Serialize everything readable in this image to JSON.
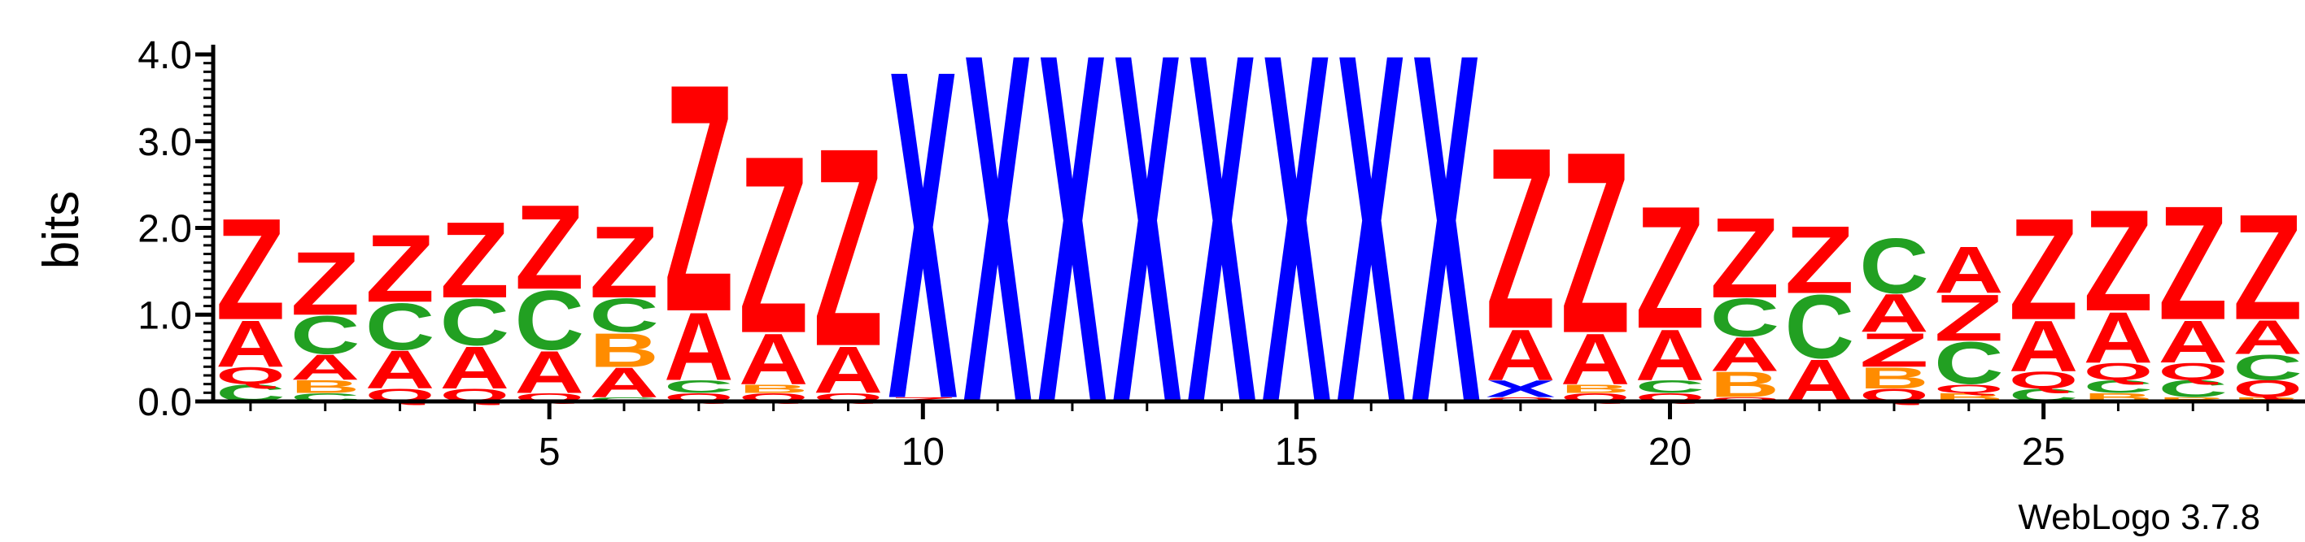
{
  "colors": {
    "red": "#ff0000",
    "green": "#22a022",
    "orange": "#ff8c00",
    "blue": "#0000ff",
    "axis": "#000000"
  },
  "letter_colors": {
    "Z": "#ff0000",
    "A": "#ff0000",
    "Q": "#ff0000",
    "C": "#22a022",
    "B": "#ff8c00",
    "X": "#0000ff"
  },
  "chart_data": {
    "type": "sequence-logo",
    "ylabel": "bits",
    "ylim": [
      0,
      4.0
    ],
    "xlim": [
      0.5,
      28.5
    ],
    "yticks": [
      "0.0",
      "1.0",
      "2.0",
      "3.0",
      "4.0"
    ],
    "ytick_values": [
      0,
      1,
      2,
      3,
      4
    ],
    "xticks": [
      "5",
      "10",
      "15",
      "20",
      "25"
    ],
    "xtick_values": [
      5,
      10,
      15,
      20,
      25
    ],
    "credit": "WebLogo 3.7.8",
    "positions": [
      {
        "pos": 1,
        "stack": [
          [
            "C",
            0.2
          ],
          [
            "Q",
            0.2
          ],
          [
            "A",
            0.55
          ],
          [
            "Z",
            1.2
          ]
        ]
      },
      {
        "pos": 2,
        "stack": [
          [
            "C",
            0.1
          ],
          [
            "B",
            0.15
          ],
          [
            "A",
            0.3
          ],
          [
            "C",
            0.45
          ],
          [
            "Z",
            0.75
          ]
        ]
      },
      {
        "pos": 3,
        "stack": [
          [
            "Q",
            0.15
          ],
          [
            "A",
            0.45
          ],
          [
            "C",
            0.55
          ],
          [
            "Z",
            0.8
          ]
        ]
      },
      {
        "pos": 4,
        "stack": [
          [
            "Q",
            0.15
          ],
          [
            "A",
            0.5
          ],
          [
            "C",
            0.55
          ],
          [
            "Z",
            0.9
          ]
        ]
      },
      {
        "pos": 5,
        "stack": [
          [
            "Q",
            0.1
          ],
          [
            "A",
            0.5
          ],
          [
            "C",
            0.7
          ],
          [
            "Z",
            1.0
          ]
        ]
      },
      {
        "pos": 6,
        "stack": [
          [
            "C",
            0.05
          ],
          [
            "A",
            0.35
          ],
          [
            "B",
            0.4
          ],
          [
            "C",
            0.4
          ],
          [
            "Z",
            0.85
          ]
        ]
      },
      {
        "pos": 7,
        "stack": [
          [
            "Q",
            0.1
          ],
          [
            "C",
            0.15
          ],
          [
            "A",
            0.8
          ],
          [
            "Z",
            2.7
          ]
        ]
      },
      {
        "pos": 8,
        "stack": [
          [
            "Q",
            0.1
          ],
          [
            "B",
            0.1
          ],
          [
            "A",
            0.6
          ],
          [
            "Z",
            2.1
          ]
        ]
      },
      {
        "pos": 9,
        "stack": [
          [
            "Q",
            0.1
          ],
          [
            "A",
            0.55
          ],
          [
            "Z",
            2.35
          ]
        ]
      },
      {
        "pos": 10,
        "stack": [
          [
            "Z",
            0.05
          ],
          [
            "X",
            3.9
          ]
        ]
      },
      {
        "pos": 11,
        "stack": [
          [
            "X",
            4.15
          ]
        ]
      },
      {
        "pos": 12,
        "stack": [
          [
            "X",
            4.15
          ]
        ]
      },
      {
        "pos": 13,
        "stack": [
          [
            "X",
            4.15
          ]
        ]
      },
      {
        "pos": 14,
        "stack": [
          [
            "X",
            4.15
          ]
        ]
      },
      {
        "pos": 15,
        "stack": [
          [
            "X",
            4.15
          ]
        ]
      },
      {
        "pos": 16,
        "stack": [
          [
            "X",
            4.15
          ]
        ]
      },
      {
        "pos": 17,
        "stack": [
          [
            "X",
            4.15
          ]
        ]
      },
      {
        "pos": 18,
        "stack": [
          [
            "Q",
            0.05
          ],
          [
            "X",
            0.2
          ],
          [
            "A",
            0.6
          ],
          [
            "Z",
            2.15
          ]
        ]
      },
      {
        "pos": 19,
        "stack": [
          [
            "Q",
            0.1
          ],
          [
            "B",
            0.1
          ],
          [
            "A",
            0.6
          ],
          [
            "Z",
            2.15
          ]
        ]
      },
      {
        "pos": 20,
        "stack": [
          [
            "Q",
            0.1
          ],
          [
            "C",
            0.15
          ],
          [
            "A",
            0.6
          ],
          [
            "Z",
            1.45
          ]
        ]
      },
      {
        "pos": 21,
        "stack": [
          [
            "Q",
            0.05
          ],
          [
            "B",
            0.3
          ],
          [
            "A",
            0.4
          ],
          [
            "C",
            0.45
          ],
          [
            "Z",
            0.95
          ]
        ]
      },
      {
        "pos": 22,
        "stack": [
          [
            "A",
            0.5
          ],
          [
            "C",
            0.75
          ],
          [
            "Z",
            0.8
          ]
        ]
      },
      {
        "pos": 23,
        "stack": [
          [
            "Q",
            0.15
          ],
          [
            "B",
            0.25
          ],
          [
            "Z",
            0.4
          ],
          [
            "A",
            0.45
          ],
          [
            "C",
            0.65
          ]
        ]
      },
      {
        "pos": 24,
        "stack": [
          [
            "B",
            0.1
          ],
          [
            "Q",
            0.1
          ],
          [
            "C",
            0.5
          ],
          [
            "Z",
            0.55
          ],
          [
            "A",
            0.55
          ]
        ]
      },
      {
        "pos": 25,
        "stack": [
          [
            "C",
            0.15
          ],
          [
            "Q",
            0.2
          ],
          [
            "A",
            0.6
          ],
          [
            "Z",
            1.2
          ]
        ]
      },
      {
        "pos": 26,
        "stack": [
          [
            "B",
            0.1
          ],
          [
            "C",
            0.15
          ],
          [
            "Q",
            0.2
          ],
          [
            "A",
            0.6
          ],
          [
            "Z",
            1.2
          ]
        ]
      },
      {
        "pos": 27,
        "stack": [
          [
            "B",
            0.05
          ],
          [
            "C",
            0.2
          ],
          [
            "Q",
            0.2
          ],
          [
            "A",
            0.5
          ],
          [
            "Z",
            1.35
          ]
        ]
      },
      {
        "pos": 28,
        "stack": [
          [
            "B",
            0.05
          ],
          [
            "Q",
            0.2
          ],
          [
            "C",
            0.3
          ],
          [
            "A",
            0.4
          ],
          [
            "Z",
            1.25
          ]
        ]
      }
    ]
  }
}
